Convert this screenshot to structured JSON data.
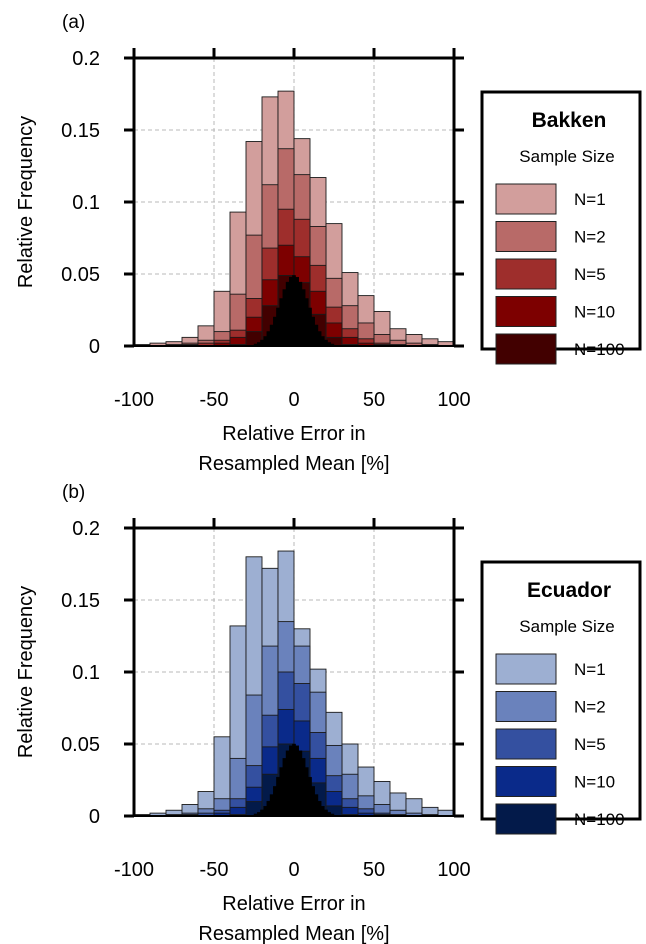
{
  "chart_data": [
    {
      "type": "bar",
      "panel_label": "(a)",
      "title": "",
      "xlabel_line1": "Relative Error in",
      "xlabel_line2": "Resampled Mean [%]",
      "ylabel": "Relative Frequency",
      "xlim": [
        -100,
        100
      ],
      "ylim": [
        0,
        0.2
      ],
      "xticks": [
        "-100",
        "-50",
        "0",
        "50",
        "100"
      ],
      "yticks": [
        "0",
        "0.05",
        "0.1",
        "0.15",
        "0.2"
      ],
      "grid": true,
      "legend": {
        "title": "Bakken",
        "subtitle": "Sample Size",
        "position": "right"
      },
      "bin_width": 10,
      "x": [
        -95,
        -85,
        -75,
        -65,
        -55,
        -45,
        -35,
        -25,
        -15,
        -5,
        5,
        15,
        25,
        35,
        45,
        55,
        65,
        75,
        85,
        95
      ],
      "series": [
        {
          "name": "N=1",
          "color": "#d29e9c",
          "values": [
            0.001,
            0.002,
            0.003,
            0.006,
            0.014,
            0.038,
            0.093,
            0.142,
            0.173,
            0.177,
            0.144,
            0.117,
            0.085,
            0.051,
            0.035,
            0.024,
            0.012,
            0.008,
            0.005,
            0.003
          ]
        },
        {
          "name": "N=2",
          "color": "#b86a68",
          "values": [
            0,
            0,
            0.001,
            0.002,
            0.004,
            0.01,
            0.036,
            0.077,
            0.112,
            0.137,
            0.119,
            0.083,
            0.047,
            0.028,
            0.016,
            0.008,
            0.004,
            0.002,
            0.001,
            0
          ]
        },
        {
          "name": "N=5",
          "color": "#9e2e2c",
          "values": [
            0,
            0,
            0,
            0.001,
            0.002,
            0.004,
            0.011,
            0.033,
            0.068,
            0.095,
            0.088,
            0.056,
            0.027,
            0.012,
            0.005,
            0.002,
            0.001,
            0,
            0,
            0
          ]
        },
        {
          "name": "N=10",
          "color": "#7d0000",
          "values": [
            0,
            0,
            0,
            0,
            0,
            0.002,
            0.006,
            0.02,
            0.046,
            0.07,
            0.062,
            0.038,
            0.016,
            0.006,
            0.002,
            0.001,
            0,
            0,
            0,
            0
          ]
        },
        {
          "name": "N=100",
          "color": "#420000",
          "values": [
            0,
            0,
            0,
            0,
            0,
            0,
            0.001,
            0.01,
            0.028,
            0.049,
            0.044,
            0.022,
            0.006,
            0.001,
            0,
            0,
            0,
            0,
            0,
            0
          ]
        }
      ]
    },
    {
      "type": "bar",
      "panel_label": "(b)",
      "title": "",
      "xlabel_line1": "Relative Error in",
      "xlabel_line2": "Resampled Mean [%]",
      "ylabel": "Relative Frequency",
      "xlim": [
        -100,
        100
      ],
      "ylim": [
        0,
        0.2
      ],
      "xticks": [
        "-100",
        "-50",
        "0",
        "50",
        "100"
      ],
      "yticks": [
        "0",
        "0.05",
        "0.1",
        "0.15",
        "0.2"
      ],
      "grid": true,
      "legend": {
        "title": "Ecuador",
        "subtitle": "Sample Size",
        "position": "right"
      },
      "bin_width": 10,
      "x": [
        -95,
        -85,
        -75,
        -65,
        -55,
        -45,
        -35,
        -25,
        -15,
        -5,
        5,
        15,
        25,
        35,
        45,
        55,
        65,
        75,
        85,
        95
      ],
      "series": [
        {
          "name": "N=1",
          "color": "#9dafd2",
          "values": [
            0.001,
            0.002,
            0.004,
            0.008,
            0.017,
            0.055,
            0.132,
            0.18,
            0.172,
            0.184,
            0.13,
            0.102,
            0.072,
            0.05,
            0.034,
            0.024,
            0.016,
            0.012,
            0.006,
            0.004
          ]
        },
        {
          "name": "N=2",
          "color": "#6a82bc",
          "values": [
            0,
            0,
            0.001,
            0.002,
            0.005,
            0.012,
            0.04,
            0.084,
            0.118,
            0.135,
            0.118,
            0.086,
            0.049,
            0.029,
            0.014,
            0.008,
            0.004,
            0.002,
            0.001,
            0
          ]
        },
        {
          "name": "N=5",
          "color": "#3450a0",
          "values": [
            0,
            0,
            0,
            0.001,
            0.002,
            0.004,
            0.012,
            0.035,
            0.07,
            0.1,
            0.092,
            0.058,
            0.028,
            0.012,
            0.005,
            0.002,
            0.001,
            0,
            0,
            0
          ]
        },
        {
          "name": "N=10",
          "color": "#0a2a8a",
          "values": [
            0,
            0,
            0,
            0,
            0,
            0.002,
            0.006,
            0.02,
            0.048,
            0.074,
            0.066,
            0.04,
            0.017,
            0.006,
            0.002,
            0.001,
            0,
            0,
            0,
            0
          ]
        },
        {
          "name": "N=100",
          "color": "#031a4a",
          "values": [
            0,
            0,
            0,
            0,
            0,
            0,
            0.001,
            0.01,
            0.029,
            0.05,
            0.045,
            0.023,
            0.007,
            0.001,
            0,
            0,
            0,
            0,
            0,
            0
          ]
        }
      ]
    }
  ]
}
